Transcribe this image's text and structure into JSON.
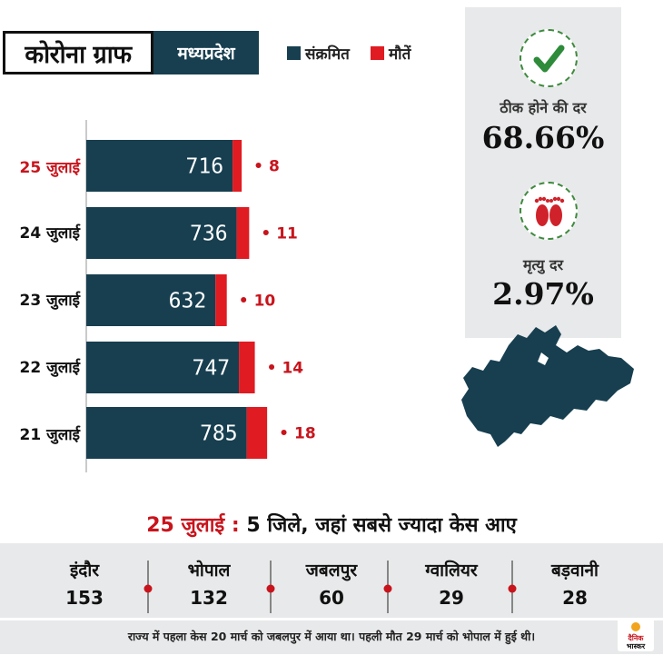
{
  "header": {
    "title": "कोरोना ग्राफ",
    "state": "मध्यप्रदेश",
    "legend": [
      {
        "label": "संक्रमित",
        "color": "#173f50"
      },
      {
        "label": "मौतें",
        "color": "#e01b22"
      }
    ]
  },
  "stats": {
    "recovery_label": "ठीक होने की दर",
    "recovery_value": "68.66%",
    "recovery_icon": "checkmark-icon",
    "death_label": "मृत्यु दर",
    "death_value": "2.97%",
    "death_icon": "footprints-icon"
  },
  "chart_data": {
    "type": "bar",
    "orientation": "horizontal",
    "categories": [
      "25 जुलाई",
      "24 जुलाई",
      "23 जुलाई",
      "22 जुलाई",
      "21 जुलाई"
    ],
    "highlight_category": "25 जुलाई",
    "series": [
      {
        "name": "संक्रमित",
        "values": [
          716,
          736,
          632,
          747,
          785
        ],
        "color": "#173f50"
      },
      {
        "name": "मौतें",
        "values": [
          8,
          11,
          10,
          14,
          18
        ],
        "color": "#e01b22"
      }
    ],
    "death_prefix": "•",
    "highlight_color": "#c8141c",
    "grid": false
  },
  "districts": {
    "headline_date": "25 जुलाई",
    "headline_sep": ":",
    "headline_text": "5 जिले, जहां सबसे ज्यादा केस आए",
    "items": [
      {
        "name": "इंदौर",
        "cases": "153"
      },
      {
        "name": "भोपाल",
        "cases": "132"
      },
      {
        "name": "जबलपुर",
        "cases": "60"
      },
      {
        "name": "ग्वालियर",
        "cases": "29"
      },
      {
        "name": "बड़वानी",
        "cases": "28"
      }
    ],
    "separator_color": "#c8141c"
  },
  "footer": {
    "note": "राज्य में पहला केस 20 मार्च को जबलपुर में आया था। पहली मौत 29 मार्च को भोपाल में हुई थी।",
    "logo_line1": "दैनिक",
    "logo_line2": "भास्कर"
  }
}
